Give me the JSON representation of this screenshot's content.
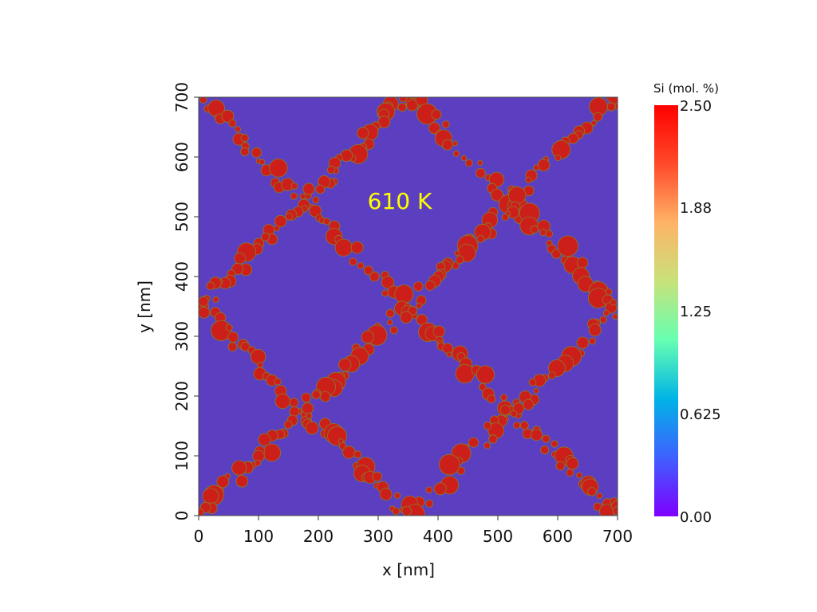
{
  "chart_data": {
    "type": "heatmap",
    "title": "",
    "annotation": "610 K",
    "xlabel": "x [nm]",
    "ylabel": "y [nm]",
    "xlim": [
      0,
      700
    ],
    "ylim": [
      0,
      700
    ],
    "xticks": [
      "0",
      "100",
      "200",
      "300",
      "400",
      "500",
      "600",
      "700"
    ],
    "yticks": [
      "0",
      "100",
      "200",
      "300",
      "400",
      "500",
      "600",
      "700"
    ],
    "background_value": 0.2,
    "particle_value": 2.5,
    "colorbar": {
      "title": "Si (mol. %)",
      "min": 0.0,
      "max": 2.5,
      "tick_labels": [
        "0.00",
        "0.625",
        "1.25",
        "1.88",
        "2.50"
      ],
      "colors": [
        "#7f00ff",
        "#3f60ff",
        "#00b4e6",
        "#66ffb2",
        "#c8e27a",
        "#ffb366",
        "#ff4a2a",
        "#ff0000"
      ]
    },
    "matrix_color": "#5c3fc0",
    "particle_color": "#cc1f1a",
    "particle_edge_color": "#8a7a2a",
    "lines": [
      {
        "from": [
          0,
          700
        ],
        "to": [
          350,
          350
        ]
      },
      {
        "from": [
          350,
          350
        ],
        "to": [
          700,
          0
        ]
      },
      {
        "from": [
          350,
          700
        ],
        "to": [
          0,
          350
        ]
      },
      {
        "from": [
          0,
          350
        ],
        "to": [
          350,
          0
        ]
      },
      {
        "from": [
          350,
          700
        ],
        "to": [
          700,
          350
        ]
      },
      {
        "from": [
          700,
          350
        ],
        "to": [
          350,
          0
        ]
      },
      {
        "from": [
          700,
          700
        ],
        "to": [
          350,
          350
        ]
      },
      {
        "from": [
          350,
          350
        ],
        "to": [
          0,
          0
        ]
      }
    ]
  }
}
